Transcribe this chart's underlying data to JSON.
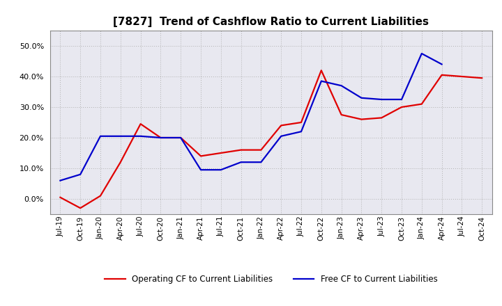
{
  "title": "[7827]  Trend of Cashflow Ratio to Current Liabilities",
  "x_labels": [
    "Jul-19",
    "Oct-19",
    "Jan-20",
    "Apr-20",
    "Jul-20",
    "Oct-20",
    "Jan-21",
    "Apr-21",
    "Jul-21",
    "Oct-21",
    "Jan-22",
    "Apr-22",
    "Jul-22",
    "Oct-22",
    "Jan-23",
    "Apr-23",
    "Jul-23",
    "Oct-23",
    "Jan-24",
    "Apr-24",
    "Jul-24",
    "Oct-24"
  ],
  "operating_cf_x": [
    0,
    1,
    2,
    3,
    4,
    5,
    6,
    7,
    8,
    9,
    10,
    11,
    12,
    13,
    14,
    15,
    16,
    17,
    18,
    19,
    20,
    21
  ],
  "operating_cf_y": [
    0.5,
    -3.0,
    1.0,
    12.0,
    24.5,
    20.0,
    20.0,
    14.0,
    15.0,
    16.0,
    16.0,
    24.0,
    25.0,
    42.0,
    27.5,
    26.0,
    26.5,
    30.0,
    31.0,
    40.5,
    40.0,
    39.5
  ],
  "free_cf_x": [
    0,
    1,
    2,
    3,
    4,
    5,
    6,
    7,
    8,
    9,
    10,
    11,
    12,
    13,
    14,
    15,
    16,
    17,
    18,
    19
  ],
  "free_cf_y": [
    6.0,
    8.0,
    20.5,
    20.5,
    20.5,
    20.0,
    20.0,
    9.5,
    9.5,
    12.0,
    12.0,
    20.5,
    22.0,
    38.5,
    37.0,
    33.0,
    32.5,
    32.5,
    47.5,
    44.0
  ],
  "ylim": [
    -5,
    55
  ],
  "yticks": [
    0.0,
    10.0,
    20.0,
    30.0,
    40.0,
    50.0
  ],
  "operating_color": "#e00000",
  "free_color": "#0000cc",
  "legend_labels": [
    "Operating CF to Current Liabilities",
    "Free CF to Current Liabilities"
  ],
  "background_color": "#ffffff",
  "grid_color": "#b0b0b0",
  "title_fontsize": 11,
  "tick_fontsize": 7.5,
  "legend_fontsize": 8.5
}
